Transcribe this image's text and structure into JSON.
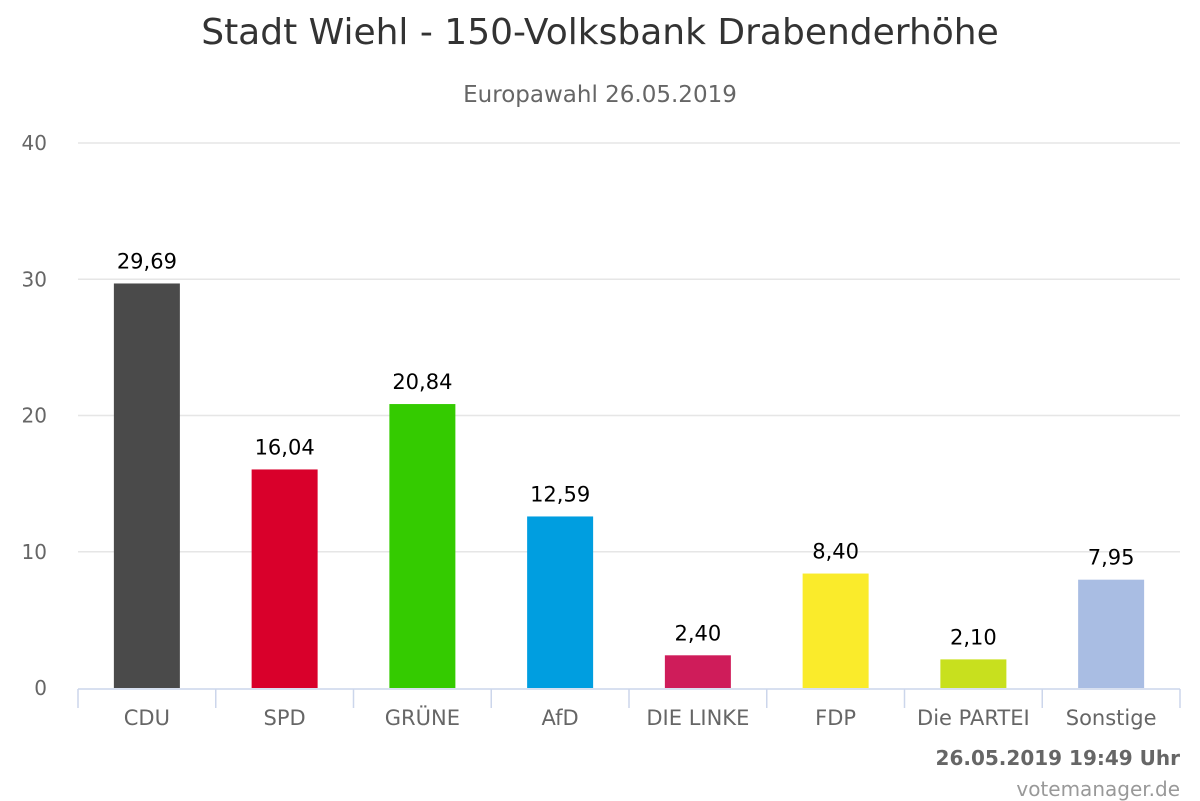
{
  "chart_data": {
    "type": "bar",
    "title": "Stadt Wiehl - 150-Volksbank Drabenderhöhe",
    "subtitle": "Europawahl 26.05.2019",
    "categories": [
      "CDU",
      "SPD",
      "GRÜNE",
      "AfD",
      "DIE LINKE",
      "FDP",
      "Die PARTEI",
      "Sonstige"
    ],
    "values": [
      29.69,
      16.04,
      20.84,
      12.59,
      2.4,
      8.4,
      2.1,
      7.95
    ],
    "data_labels": [
      "29,69",
      "16,04",
      "20,84",
      "12,59",
      "2,40",
      "8,40",
      "2,10",
      "7,95"
    ],
    "colors": [
      "#4a4a4a",
      "#d9002b",
      "#34cb00",
      "#009ee0",
      "#cf1c5a",
      "#faeb2b",
      "#c8e01e",
      "#a9bde3"
    ],
    "ylim": [
      0,
      40
    ],
    "yticks": [
      0,
      10,
      20,
      30,
      40
    ],
    "grid": true,
    "legend": "none"
  },
  "footer": {
    "timestamp": "26.05.2019 19:49 Uhr",
    "credit": "votemanager.de"
  }
}
